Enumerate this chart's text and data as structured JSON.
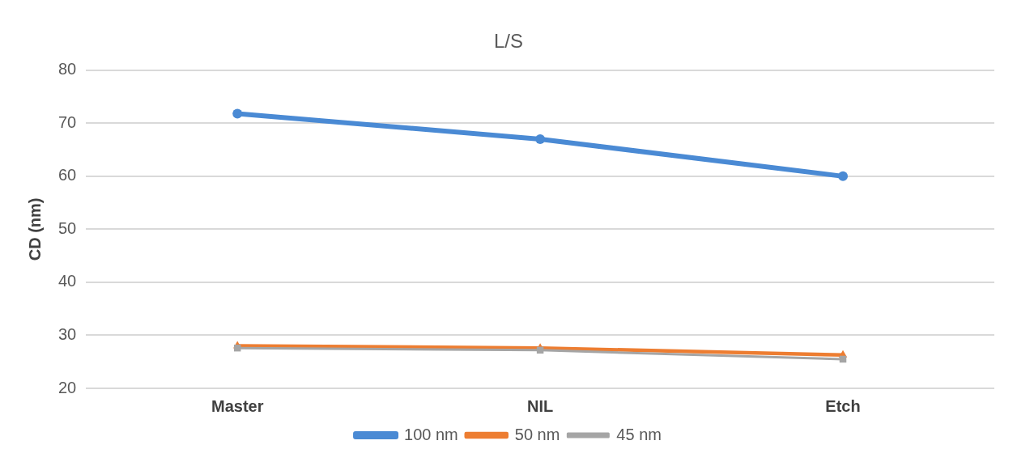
{
  "chart_data": {
    "type": "line",
    "title": "L/S",
    "ylabel": "CD (nm)",
    "categories": [
      "Master",
      "NIL",
      "Etch"
    ],
    "series": [
      {
        "name": "100 nm",
        "color": "#4a8ad4",
        "marker": "circle",
        "values": [
          71.8,
          67,
          60
        ]
      },
      {
        "name": "50 nm",
        "color": "#ed7d31",
        "marker": "triangle",
        "values": [
          28,
          27.6,
          26.3
        ]
      },
      {
        "name": "45 nm",
        "color": "#a5a5a5",
        "marker": "square",
        "values": [
          27.6,
          27.2,
          25.5
        ]
      }
    ],
    "ylim": [
      20,
      80
    ],
    "yticks": [
      20,
      30,
      40,
      50,
      60,
      70,
      80
    ],
    "grid": "y",
    "legend": "bottom"
  }
}
